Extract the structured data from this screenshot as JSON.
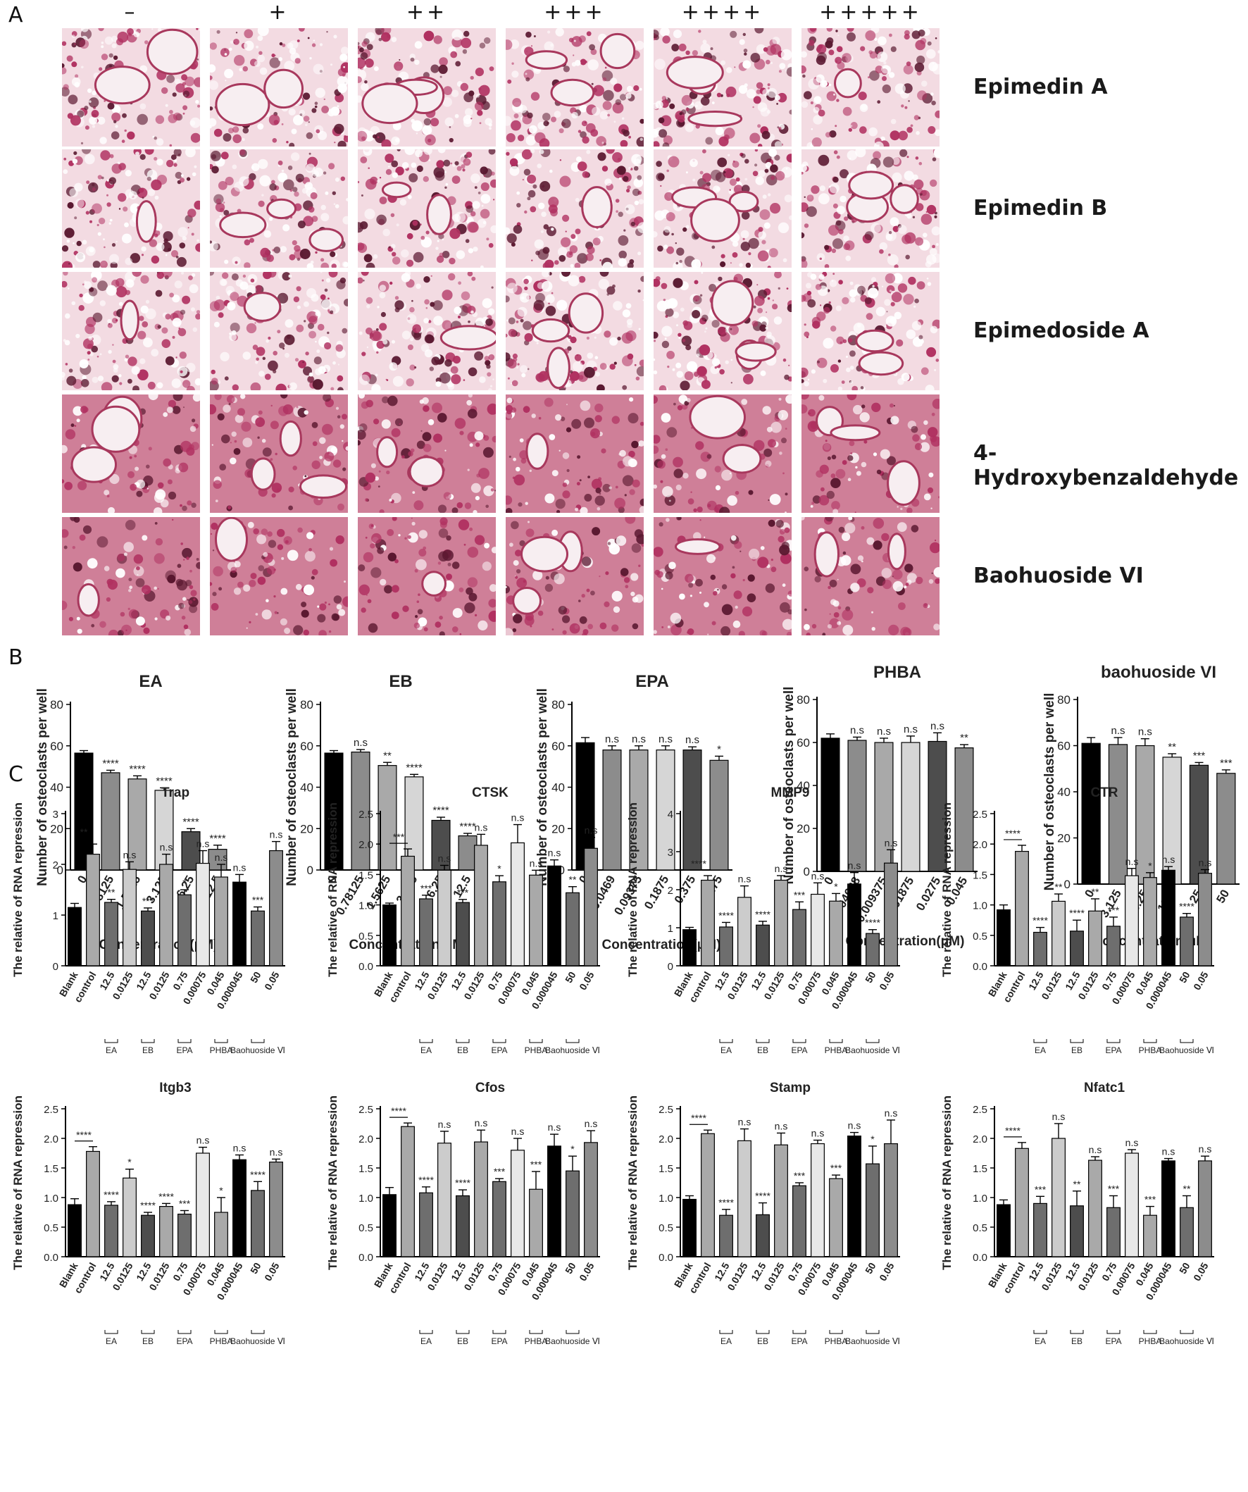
{
  "panels": {
    "A": "A",
    "B": "B",
    "C": "C"
  },
  "panelA": {
    "columns": [
      "–",
      "+",
      "++",
      "+++",
      "++++",
      "+++++"
    ],
    "rows": [
      "Epimedin A",
      "Epimedin B",
      "Epimedoside A",
      "4-Hydroxybenzaldehyde",
      "Baohuoside VI"
    ],
    "stain_color": "#b03060"
  },
  "chart_data": [
    {
      "id": "EA",
      "type": "bar",
      "title": "EA",
      "ylabel": "Number of osteoclasts per well",
      "xlabel": "Concentration(μM)",
      "categories": [
        "0",
        "0.78125",
        "1.5625",
        "3.125",
        "6.25",
        "12.5"
      ],
      "values": [
        56.5,
        47,
        44,
        38.5,
        18.5,
        10
      ],
      "errors": [
        1.2,
        1.2,
        1.5,
        1.2,
        1.5,
        2
      ],
      "sig": [
        "",
        "****",
        "****",
        "****",
        "****",
        "****"
      ],
      "ylim": [
        0,
        80
      ],
      "yticks": [
        0,
        20,
        40,
        60,
        80
      ]
    },
    {
      "id": "EB",
      "type": "bar",
      "title": "EB",
      "ylabel": "Number of osteoclasts per well",
      "xlabel": "Concentration(μM)",
      "categories": [
        "0",
        "0.78125",
        "1.5625",
        "3.125",
        "6.25",
        "12.5"
      ],
      "values": [
        56.5,
        57,
        50.5,
        45,
        24,
        16.5
      ],
      "errors": [
        1.2,
        1.2,
        1.5,
        1.2,
        1.5,
        1.2
      ],
      "sig": [
        "",
        "n.s",
        "**",
        "****",
        "****",
        "****"
      ],
      "ylim": [
        0,
        80
      ],
      "yticks": [
        0,
        20,
        40,
        60,
        80
      ]
    },
    {
      "id": "EPA",
      "type": "bar",
      "title": "EPA",
      "ylabel": "Number of osteoclasts per well",
      "xlabel": "Concentration(μM)",
      "categories": [
        "0",
        "0.0469",
        "0.09375",
        "0.1875",
        "0.375",
        "0.75"
      ],
      "values": [
        61.5,
        58,
        58,
        58,
        58,
        53
      ],
      "errors": [
        2.5,
        2,
        2,
        2,
        1.5,
        2
      ],
      "sig": [
        "",
        "n.s",
        "n.s",
        "n.s",
        "n.s",
        "*"
      ],
      "ylim": [
        0,
        80
      ],
      "yticks": [
        0,
        20,
        40,
        60,
        80
      ]
    },
    {
      "id": "PHBA",
      "type": "bar",
      "title": "PHBA",
      "ylabel": "Number of osteoclasts per well",
      "xlabel": "Concentration(μM)",
      "categories": [
        "0",
        "0.004688",
        "0.009375",
        "0.01875",
        "0.0275",
        "0.045"
      ],
      "values": [
        62,
        61,
        60,
        60,
        60.5,
        57.5
      ],
      "errors": [
        2,
        1.5,
        2,
        3,
        4,
        1.5
      ],
      "sig": [
        "",
        "n.s",
        "n.s",
        "n.s",
        "n.s",
        "**"
      ],
      "ylim": [
        0,
        80
      ],
      "yticks": [
        0,
        20,
        40,
        60,
        80
      ]
    },
    {
      "id": "baohuoside VI",
      "type": "bar",
      "title": "baohuoside VI",
      "ylabel": "Number of osteoclasts per well",
      "xlabel": "Concentration(μM)",
      "categories": [
        "0",
        "3.125",
        "6.25",
        "12.5",
        "25",
        "50"
      ],
      "values": [
        61,
        60.5,
        60,
        55,
        51.5,
        48
      ],
      "errors": [
        2.5,
        3,
        3,
        1.5,
        1.2,
        1.5
      ],
      "sig": [
        "",
        "n.s",
        "n.s",
        "**",
        "***",
        "***"
      ],
      "ylim": [
        0,
        80
      ],
      "yticks": [
        0,
        20,
        40,
        60,
        80
      ]
    },
    {
      "id": "Trap",
      "type": "bar",
      "title": "Trap",
      "ylabel": "The relative of RNA repression",
      "categories": [
        "Blank",
        "control",
        "12.5",
        "0.0125",
        "12.5",
        "0.0125",
        "0.75",
        "0.00075",
        "0.045",
        "0.000045",
        "50",
        "0.05"
      ],
      "values": [
        1.15,
        2.2,
        1.25,
        1.9,
        1.08,
        2,
        1.4,
        2.02,
        1.75,
        1.65,
        1.08,
        2.27
      ],
      "errors": [
        0.08,
        0.2,
        0.06,
        0.15,
        0.06,
        0.2,
        0.1,
        0.25,
        0.25,
        0.15,
        0.08,
        0.18
      ],
      "sig": [
        "",
        "",
        "**",
        "n.s",
        "***",
        "n.s",
        "*",
        "n.s",
        "n.s",
        "n.s",
        "***",
        "n.s"
      ],
      "bracket": "**",
      "ylim": [
        0,
        3
      ],
      "yticks": [
        0,
        1,
        2,
        3
      ],
      "yticklabels": [
        "0",
        "1",
        "2",
        "3"
      ],
      "groups": [
        "EA",
        "EB",
        "EPA",
        "PHBA",
        "Baohuoside Ⅵ"
      ]
    },
    {
      "id": "CTSK",
      "type": "bar",
      "title": "CTSK",
      "ylabel": "The relative of RNA repression",
      "categories": [
        "Blank",
        "control",
        "12.5",
        "0.0125",
        "12.5",
        "0.0125",
        "0.75",
        "0.00075",
        "0.045",
        "0.000045",
        "50",
        "0.05"
      ],
      "values": [
        1.0,
        1.8,
        1.1,
        1.57,
        1.04,
        1.98,
        1.38,
        2.02,
        1.49,
        1.64,
        1.2,
        1.93
      ],
      "errors": [
        0.03,
        0.12,
        0.06,
        0.08,
        0.05,
        0.18,
        0.1,
        0.3,
        0.08,
        0.1,
        0.1,
        0.18
      ],
      "sig": [
        "",
        "",
        "***",
        "n.s",
        "***",
        "n.s",
        "*",
        "n.s",
        "n.s",
        "n.s",
        "**",
        "n.s"
      ],
      "bracket": "***",
      "ylim": [
        0,
        2.5
      ],
      "yticks": [
        0,
        0.5,
        1,
        1.5,
        2,
        2.5
      ],
      "yticklabels": [
        "0.0",
        "0.5",
        "1.0",
        "1.5",
        "2.0",
        "2.5"
      ],
      "groups": [
        "EA",
        "EB",
        "EPA",
        "PHBA",
        "Baohuoside Ⅵ"
      ]
    },
    {
      "id": "MMP9",
      "type": "bar",
      "title": "MMP9",
      "ylabel": "The relative of RNA repression",
      "categories": [
        "Blank",
        "control",
        "12.5",
        "0.0125",
        "12.5",
        "0.0125",
        "0.75",
        "0.00075",
        "0.045",
        "0.000045",
        "50",
        "0.05"
      ],
      "values": [
        0.95,
        2.25,
        1.02,
        1.8,
        1.07,
        2.25,
        1.48,
        1.88,
        1.7,
        2.15,
        0.85,
        2.7
      ],
      "errors": [
        0.06,
        0.12,
        0.12,
        0.3,
        0.1,
        0.12,
        0.2,
        0.3,
        0.2,
        0.3,
        0.1,
        0.35
      ],
      "sig": [
        "",
        "",
        "****",
        "n.s",
        "****",
        "n.s",
        "***",
        "n.s",
        "*",
        "n.s",
        "****",
        "n.s"
      ],
      "bracket": "****",
      "ylim": [
        0,
        4
      ],
      "yticks": [
        0,
        1,
        2,
        3,
        4
      ],
      "yticklabels": [
        "0",
        "1",
        "2",
        "3",
        "4"
      ],
      "groups": [
        "EA",
        "EB",
        "EPA",
        "PHBA",
        "Baohuoside Ⅵ"
      ]
    },
    {
      "id": "CTR",
      "type": "bar",
      "title": "CTR",
      "ylabel": "The relative of RNA repression",
      "categories": [
        "Blank",
        "control",
        "12.5",
        "0.0125",
        "12.5",
        "0.0125",
        "0.75",
        "0.00075",
        "0.045",
        "0.000045",
        "50",
        "0.05"
      ],
      "values": [
        0.92,
        1.88,
        0.55,
        1.06,
        0.57,
        0.9,
        0.65,
        1.48,
        1.45,
        1.57,
        0.8,
        1.52
      ],
      "errors": [
        0.08,
        0.1,
        0.08,
        0.12,
        0.18,
        0.2,
        0.15,
        0.12,
        0.08,
        0.06,
        0.06,
        0.06
      ],
      "sig": [
        "",
        "",
        "****",
        "**",
        "****",
        "**",
        "***",
        "n.s",
        "*",
        "n.s",
        "****",
        "n.s"
      ],
      "bracket": "****",
      "ylim": [
        0,
        2.5
      ],
      "yticks": [
        0,
        0.5,
        1,
        1.5,
        2,
        2.5
      ],
      "yticklabels": [
        "0.0",
        "0.5",
        "1.0",
        "1.5",
        "2.0",
        "2.5"
      ],
      "groups": [
        "EA",
        "EB",
        "EPA",
        "PHBA",
        "Baohuoside Ⅵ"
      ]
    },
    {
      "id": "Itgb3",
      "type": "bar",
      "title": "Itgb3",
      "ylabel": "The relative of RNA repression",
      "categories": [
        "Blank",
        "control",
        "12.5",
        "0.0125",
        "12.5",
        "0.0125",
        "0.75",
        "0.00075",
        "0.045",
        "0.000045",
        "50",
        "0.05"
      ],
      "values": [
        0.88,
        1.78,
        0.87,
        1.33,
        0.7,
        0.85,
        0.72,
        1.75,
        0.75,
        1.64,
        1.12,
        1.6
      ],
      "errors": [
        0.1,
        0.08,
        0.06,
        0.15,
        0.05,
        0.05,
        0.06,
        0.1,
        0.25,
        0.08,
        0.15,
        0.05
      ],
      "sig": [
        "",
        "",
        "****",
        "*",
        "****",
        "****",
        "***",
        "n.s",
        "*",
        "n.s",
        "****",
        "n.s"
      ],
      "bracket": "****",
      "ylim": [
        0,
        2.5
      ],
      "yticks": [
        0,
        0.5,
        1,
        1.5,
        2,
        2.5
      ],
      "yticklabels": [
        "0.0",
        "0.5",
        "1.0",
        "1.5",
        "2.0",
        "2.5"
      ],
      "groups": [
        "EA",
        "EB",
        "EPA",
        "PHBA",
        "Baohuoside Ⅵ"
      ]
    },
    {
      "id": "Cfos",
      "type": "bar",
      "title": "Cfos",
      "ylabel": "The relative of RNA repression",
      "categories": [
        "Blank",
        "control",
        "12.5",
        "0.0125",
        "12.5",
        "0.0125",
        "0.75",
        "0.00075",
        "0.045",
        "0.000045",
        "50",
        "0.05"
      ],
      "values": [
        1.05,
        2.2,
        1.08,
        1.92,
        1.03,
        1.94,
        1.27,
        1.8,
        1.14,
        1.87,
        1.45,
        1.93
      ],
      "errors": [
        0.12,
        0.06,
        0.1,
        0.2,
        0.1,
        0.2,
        0.05,
        0.2,
        0.3,
        0.2,
        0.25,
        0.2
      ],
      "sig": [
        "",
        "",
        "****",
        "n.s",
        "****",
        "n.s",
        "***",
        "n.s",
        "***",
        "n.s",
        "*",
        "n.s"
      ],
      "bracket": "****",
      "ylim": [
        0,
        2.5
      ],
      "yticks": [
        0,
        0.5,
        1,
        1.5,
        2,
        2.5
      ],
      "yticklabels": [
        "0.0",
        "0.5",
        "1.0",
        "1.5",
        "2.0",
        "2.5"
      ],
      "groups": [
        "EA",
        "EB",
        "EPA",
        "PHBA",
        "Baohuoside Ⅵ"
      ]
    },
    {
      "id": "Stamp",
      "type": "bar",
      "title": "Stamp",
      "ylabel": "The relative of RNA repression",
      "categories": [
        "Blank",
        "control",
        "12.5",
        "0.0125",
        "12.5",
        "0.0125",
        "0.75",
        "0.00075",
        "0.045",
        "0.000045",
        "50",
        "0.05"
      ],
      "values": [
        0.97,
        2.08,
        0.7,
        1.96,
        0.71,
        1.89,
        1.2,
        1.91,
        1.32,
        2.04,
        1.57,
        1.91
      ],
      "errors": [
        0.06,
        0.06,
        0.1,
        0.2,
        0.2,
        0.2,
        0.05,
        0.06,
        0.06,
        0.06,
        0.3,
        0.4
      ],
      "sig": [
        "",
        "",
        "****",
        "n.s",
        "****",
        "n.s",
        "***",
        "n.s",
        "***",
        "n.s",
        "*",
        "n.s"
      ],
      "bracket": "****",
      "ylim": [
        0,
        2.5
      ],
      "yticks": [
        0,
        0.5,
        1,
        1.5,
        2,
        2.5
      ],
      "yticklabels": [
        "0.0",
        "0.5",
        "1.0",
        "1.5",
        "2.0",
        "2.5"
      ],
      "groups": [
        "EA",
        "EB",
        "EPA",
        "PHBA",
        "Baohuoside Ⅵ"
      ]
    },
    {
      "id": "Nfatc1",
      "type": "bar",
      "title": "Nfatc1",
      "ylabel": "The relative of RNA repression",
      "categories": [
        "Blank",
        "control",
        "12.5",
        "0.0125",
        "12.5",
        "0.0125",
        "0.75",
        "0.00075",
        "0.045",
        "0.000045",
        "50",
        "0.05"
      ],
      "values": [
        0.88,
        1.83,
        0.9,
        2.0,
        0.86,
        1.63,
        0.83,
        1.75,
        0.7,
        1.62,
        0.83,
        1.62
      ],
      "errors": [
        0.08,
        0.1,
        0.12,
        0.25,
        0.25,
        0.06,
        0.2,
        0.06,
        0.15,
        0.04,
        0.2,
        0.08
      ],
      "sig": [
        "",
        "",
        "***",
        "n.s",
        "**",
        "n.s",
        "***",
        "n.s",
        "***",
        "n.s",
        "**",
        "n.s"
      ],
      "bracket": "****",
      "ylim": [
        0,
        2.5
      ],
      "yticks": [
        0,
        0.5,
        1,
        1.5,
        2,
        2.5
      ],
      "yticklabels": [
        "0.0",
        "0.5",
        "1.0",
        "1.5",
        "2.0",
        "2.5"
      ],
      "groups": [
        "EA",
        "EB",
        "EPA",
        "PHBA",
        "Baohuoside Ⅵ"
      ]
    }
  ]
}
